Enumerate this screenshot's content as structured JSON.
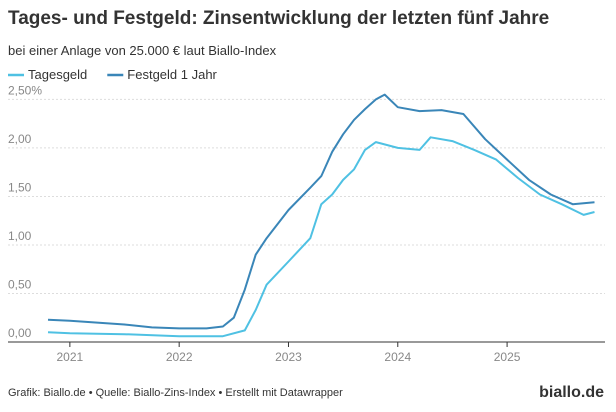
{
  "chart_data": {
    "type": "line",
    "title": "Tages- und Festgeld: Zinsentwicklung der letzten fünf Jahre",
    "subtitle": "bei einer Anlage von 25.000 € laut Biallo-Index",
    "source": "Grafik: Biallo.de • Quelle: Biallo-Zins-Index • Erstellt mit Datawrapper",
    "logo": "biallo.de",
    "legend": "top-left",
    "grid": true,
    "xlim": [
      2020.8,
      2025.85
    ],
    "xticks": [
      2021,
      2022,
      2023,
      2024,
      2025
    ],
    "ylim": [
      0,
      2.7
    ],
    "yticks": [
      {
        "value": 0,
        "label": "0,00"
      },
      {
        "value": 0.5,
        "label": "0,50"
      },
      {
        "value": 1,
        "label": "1,00"
      },
      {
        "value": 1.5,
        "label": "1,50"
      },
      {
        "value": 2,
        "label": "2,00"
      },
      {
        "value": 2.5,
        "label": "2,50%"
      }
    ],
    "series": [
      {
        "name": "Tagesgeld",
        "color": "#4fc1e3",
        "x": [
          2020.8,
          2021.0,
          2021.5,
          2022.0,
          2022.4,
          2022.6,
          2022.7,
          2022.8,
          2023.0,
          2023.2,
          2023.3,
          2023.4,
          2023.5,
          2023.6,
          2023.7,
          2023.8,
          2024.0,
          2024.2,
          2024.3,
          2024.5,
          2024.7,
          2024.9,
          2025.1,
          2025.3,
          2025.5,
          2025.7,
          2025.8
        ],
        "values": [
          0.1,
          0.09,
          0.08,
          0.06,
          0.06,
          0.12,
          0.33,
          0.59,
          0.83,
          1.07,
          1.42,
          1.52,
          1.67,
          1.78,
          1.98,
          2.06,
          2.0,
          1.98,
          2.11,
          2.07,
          1.98,
          1.88,
          1.69,
          1.52,
          1.42,
          1.31,
          1.34
        ]
      },
      {
        "name": "Festgeld 1 Jahr",
        "color": "#3a86b8",
        "x": [
          2020.8,
          2021.0,
          2021.5,
          2021.75,
          2022.0,
          2022.25,
          2022.4,
          2022.5,
          2022.6,
          2022.7,
          2022.8,
          2023.0,
          2023.2,
          2023.3,
          2023.4,
          2023.5,
          2023.6,
          2023.7,
          2023.8,
          2023.88,
          2024.0,
          2024.2,
          2024.4,
          2024.6,
          2024.8,
          2025.0,
          2025.2,
          2025.4,
          2025.6,
          2025.8
        ],
        "values": [
          0.23,
          0.22,
          0.18,
          0.15,
          0.14,
          0.14,
          0.16,
          0.25,
          0.54,
          0.9,
          1.07,
          1.36,
          1.59,
          1.71,
          1.96,
          2.14,
          2.29,
          2.4,
          2.5,
          2.55,
          2.42,
          2.38,
          2.39,
          2.35,
          2.09,
          1.88,
          1.67,
          1.52,
          1.42,
          1.44
        ]
      }
    ]
  }
}
